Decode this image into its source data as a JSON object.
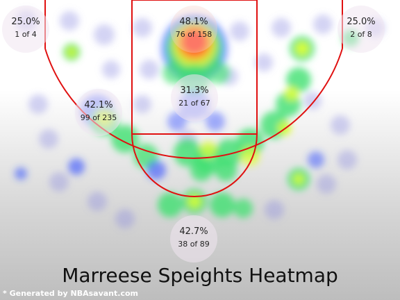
{
  "chart_data": {
    "type": "heatmap",
    "title": "Marreese Speights Heatmap",
    "zones": [
      {
        "id": "left-corner",
        "pct": "25.0%",
        "made": 1,
        "att": 4,
        "label": "1 of 4"
      },
      {
        "id": "restricted-area",
        "pct": "48.1%",
        "made": 76,
        "att": 158,
        "label": "76 of 158"
      },
      {
        "id": "right-corner",
        "pct": "25.0%",
        "made": 2,
        "att": 8,
        "label": "2 of 8"
      },
      {
        "id": "left-midrange",
        "pct": "42.1%",
        "made": 99,
        "att": 235,
        "label": "99 of 235"
      },
      {
        "id": "paint",
        "pct": "31.3%",
        "made": 21,
        "att": 67,
        "label": "21 of 67"
      },
      {
        "id": "top-key",
        "pct": "42.7%",
        "made": 38,
        "att": 89,
        "label": "38 of 89"
      }
    ]
  },
  "credit": "* Generated by NBAsavant.com",
  "colors": {
    "court_line": "#e01010",
    "zone_bubble": "#f0e6f0"
  }
}
